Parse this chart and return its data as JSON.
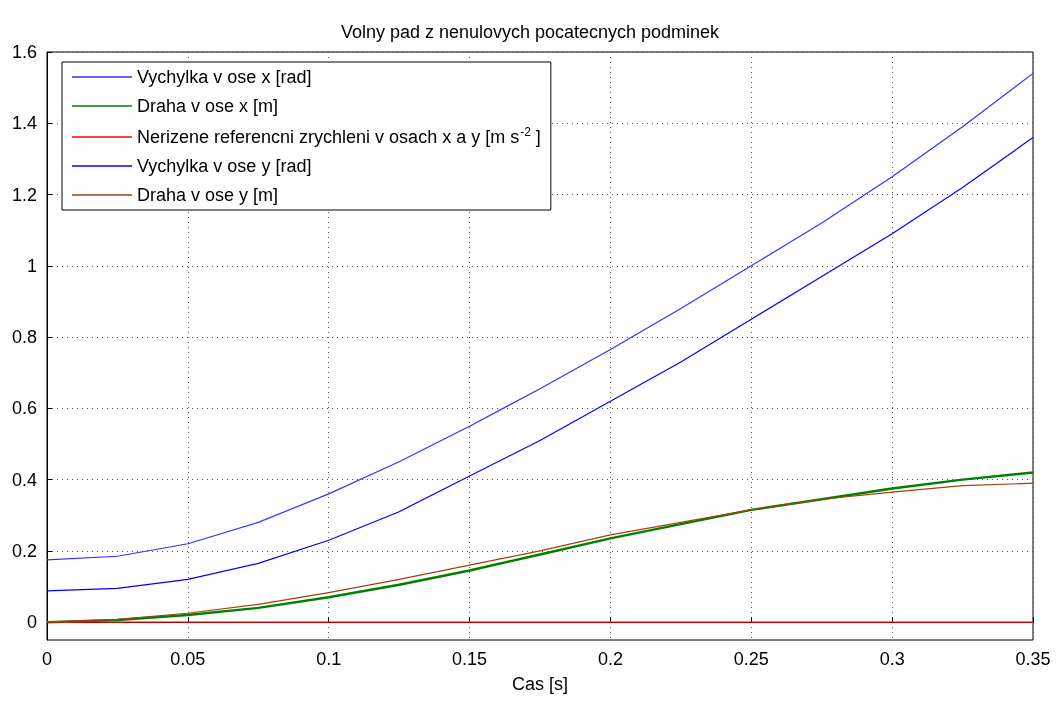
{
  "chart_data": {
    "type": "line",
    "title": "Volny pad z nenulovych pocatecnych podminek",
    "xlabel": "Cas [s]",
    "x": [
      0,
      0.025,
      0.05,
      0.075,
      0.1,
      0.125,
      0.15,
      0.175,
      0.2,
      0.225,
      0.25,
      0.275,
      0.3,
      0.325,
      0.35
    ],
    "series": [
      {
        "name": "Vychylka v ose x [rad]",
        "color": "#3333ff",
        "values": [
          0.175,
          0.185,
          0.22,
          0.28,
          0.36,
          0.45,
          0.55,
          0.655,
          0.765,
          0.88,
          1.0,
          1.12,
          1.25,
          1.39,
          1.54
        ]
      },
      {
        "name": "Draha v ose x [m]",
        "color": "#008000",
        "values": [
          0,
          0.006,
          0.02,
          0.04,
          0.07,
          0.105,
          0.145,
          0.19,
          0.235,
          0.275,
          0.315,
          0.345,
          0.375,
          0.4,
          0.42
        ]
      },
      {
        "name": "Nerizene referencni zrychleni v osach x a y [m s$^{-2}$ ]",
        "color": "#ff0000",
        "values": [
          0,
          0,
          0,
          0,
          0,
          0,
          0,
          0,
          0,
          0,
          0,
          0,
          0,
          0,
          0
        ]
      },
      {
        "name": "Vychylka v ose y [rad]",
        "color": "#0000ff",
        "values": [
          0.088,
          0.095,
          0.12,
          0.165,
          0.23,
          0.31,
          0.41,
          0.51,
          0.62,
          0.73,
          0.85,
          0.97,
          1.09,
          1.22,
          1.36
        ]
      },
      {
        "name": "Draha v ose y [m]",
        "color": "#a0400f",
        "values": [
          0,
          0.008,
          0.025,
          0.05,
          0.083,
          0.12,
          0.16,
          0.2,
          0.245,
          0.28,
          0.315,
          0.345,
          0.365,
          0.383,
          0.39
        ]
      }
    ],
    "xlim": [
      0,
      0.35
    ],
    "xticks": [
      0,
      0.05,
      0.1,
      0.15,
      0.2,
      0.25,
      0.3,
      0.35
    ],
    "ylim": [
      -0.05,
      1.6
    ],
    "yticks": [
      0,
      0.2,
      0.4,
      0.6,
      0.8,
      1,
      1.2,
      1.4,
      1.6
    ],
    "grid": true,
    "legend": "top left",
    "line_style": "solid",
    "marker": "none"
  }
}
